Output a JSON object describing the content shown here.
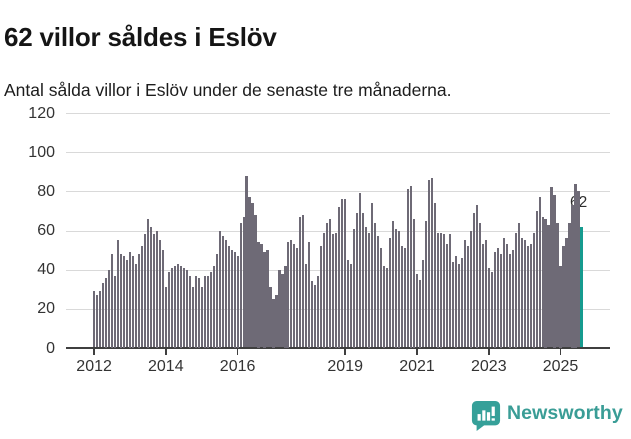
{
  "header": {
    "title": "62 villor såldes i Eslöv",
    "subtitle": "Antal sålda villor i Eslöv under de senaste tre månaderna."
  },
  "chart_data": {
    "type": "bar",
    "title": "62 villor såldes i Eslöv",
    "subtitle": "Antal sålda villor i Eslöv under de senaste tre månaderna.",
    "unit": "sålda villor (rullande tre månader)",
    "x_start": "2012-01",
    "x_end": "2025-08",
    "frequency": "monthly",
    "ylim": [
      0,
      120
    ],
    "yticks": [
      0,
      20,
      40,
      60,
      80,
      100,
      120
    ],
    "xticks": [
      {
        "label": "2012",
        "index": 0
      },
      {
        "label": "2014",
        "index": 24
      },
      {
        "label": "2016",
        "index": 48
      },
      {
        "label": "2019",
        "index": 84
      },
      {
        "label": "2021",
        "index": 108
      },
      {
        "label": "2023",
        "index": 132
      },
      {
        "label": "2025",
        "index": 156
      }
    ],
    "grid": "horizontal",
    "legend": "none",
    "bar_color": "#6E6A76",
    "highlight": {
      "index": 163,
      "value": 62,
      "label": "62",
      "color": "#169B8F"
    },
    "values": [
      29,
      27,
      29,
      33,
      36,
      40,
      48,
      37,
      55,
      48,
      47,
      45,
      49,
      47,
      43,
      48,
      52,
      58,
      66,
      62,
      58,
      60,
      55,
      50,
      31,
      39,
      41,
      42,
      43,
      42,
      41,
      40,
      37,
      31,
      37,
      36,
      31,
      37,
      37,
      39,
      42,
      48,
      60,
      57,
      55,
      52,
      50,
      49,
      47,
      64,
      67,
      88,
      77,
      74,
      68,
      54,
      53,
      49,
      50,
      31,
      25,
      27,
      40,
      38,
      42,
      54,
      55,
      53,
      51,
      67,
      68,
      43,
      54,
      34,
      32,
      37,
      52,
      59,
      64,
      66,
      58,
      59,
      72,
      76,
      76,
      45,
      43,
      61,
      69,
      79,
      69,
      62,
      59,
      74,
      64,
      57,
      51,
      42,
      41,
      56,
      65,
      61,
      60,
      52,
      51,
      81,
      83,
      66,
      38,
      35,
      45,
      65,
      86,
      87,
      74,
      59,
      59,
      58,
      53,
      58,
      44,
      47,
      43,
      46,
      55,
      52,
      60,
      69,
      73,
      64,
      53,
      55,
      41,
      39,
      49,
      51,
      48,
      56,
      53,
      48,
      50,
      59,
      64,
      56,
      55,
      52,
      53,
      59,
      70,
      77,
      67,
      66,
      63,
      82,
      78,
      64,
      42,
      52,
      56,
      64,
      73,
      84,
      80,
      62
    ]
  },
  "footer": {
    "brand": "Newsworthy",
    "brand_color": "#3A9D96",
    "logo_icon": "newsworthy-chart-bubble-icon"
  }
}
